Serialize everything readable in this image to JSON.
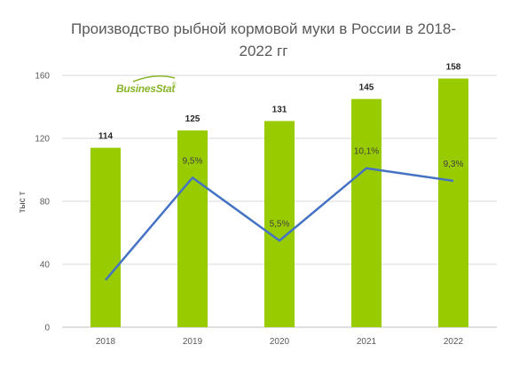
{
  "title": {
    "line1": "Производство рыбной кормовой муки в России в 2018-",
    "line2": "2022 гг"
  },
  "logo": {
    "text": "BusinesStat",
    "mark": "®",
    "color": "#8ab52a"
  },
  "colors": {
    "bar": "#99cc00",
    "line": "#4472c4",
    "grid": "#d9d9d9",
    "axis": "#bfbfbf"
  },
  "chart_data": {
    "type": "bar",
    "categories": [
      "2018",
      "2019",
      "2020",
      "2021",
      "2022"
    ],
    "series": [
      {
        "values": [
          114,
          125,
          131,
          145,
          158
        ],
        "data_labels": [
          "114",
          "125",
          "131",
          "145",
          "158"
        ]
      }
    ],
    "line_series": {
      "values": [
        null,
        9.5,
        5.5,
        10.1,
        9.3
      ],
      "data_labels": [
        "",
        "9,5%",
        "5,5%",
        "10,1%",
        "9,3%"
      ]
    },
    "ylabel": "тыс т",
    "ylim": [
      0,
      160
    ],
    "yticks": [
      "0",
      "40",
      "80",
      "120",
      "160"
    ],
    "grid": true
  }
}
